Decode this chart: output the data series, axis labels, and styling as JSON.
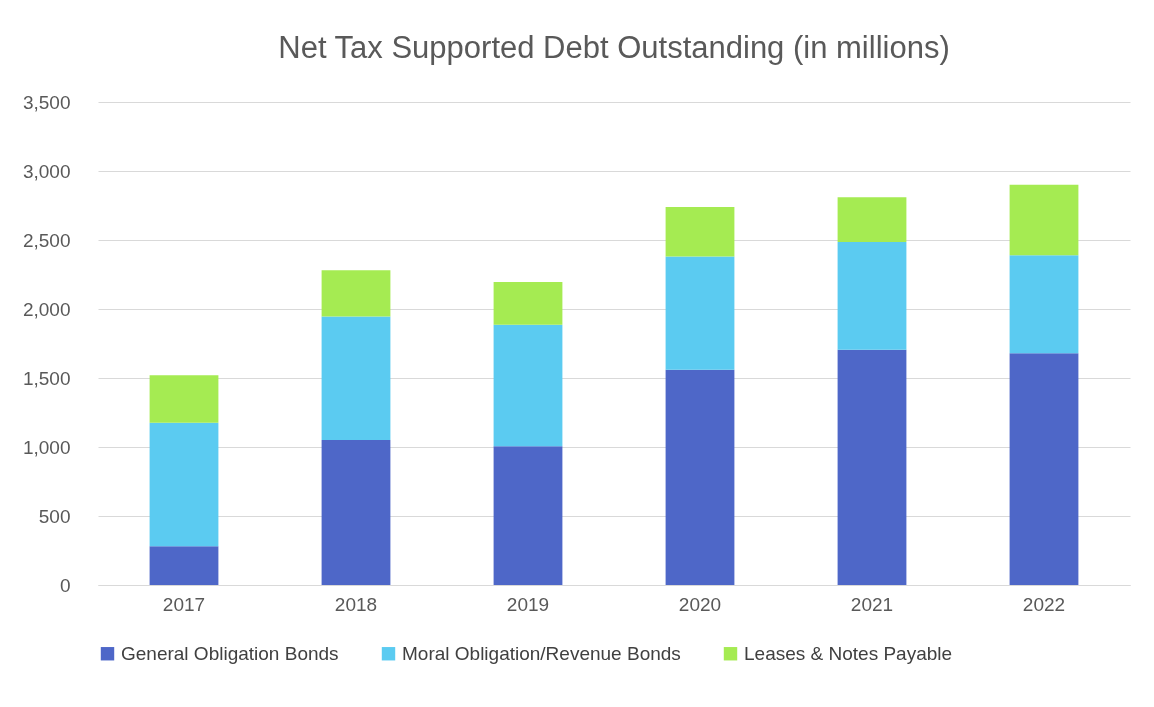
{
  "chart_data": {
    "type": "bar",
    "title": "Net Tax Supported Debt Outstanding (in millions)",
    "categories": [
      "2017",
      "2018",
      "2019",
      "2020",
      "2021",
      "2022"
    ],
    "stacked": true,
    "series": [
      {
        "name": "General Obligation Bonds",
        "color": "#4e67c8",
        "values": [
          280,
          1050,
          1005,
          1560,
          1705,
          1680
        ]
      },
      {
        "name": "Moral Obligation/Revenue Bonds",
        "color": "#5bcbf1",
        "values": [
          895,
          895,
          880,
          820,
          780,
          710
        ]
      },
      {
        "name": "Leases & Notes Payable",
        "color": "#a5eb52",
        "values": [
          345,
          335,
          310,
          360,
          325,
          510
        ]
      }
    ],
    "ylim": [
      0,
      3500
    ],
    "yticks": [
      0,
      500,
      {
        "value": 1000,
        "label": "1,000"
      },
      {
        "value": 1500,
        "label": "1,500"
      },
      {
        "value": 2000,
        "label": "2,000"
      },
      {
        "value": 2500,
        "label": "2,500"
      },
      {
        "value": 3000,
        "label": "3,000"
      },
      {
        "value": 3500,
        "label": "3,500"
      }
    ],
    "grid": "y",
    "legend": "bottom"
  }
}
